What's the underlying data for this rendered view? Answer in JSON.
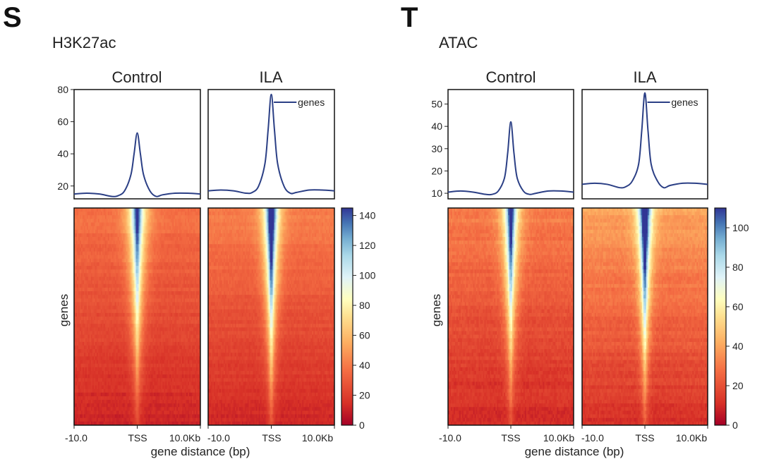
{
  "chart_data": [
    {
      "panel_letter": "S",
      "title": "H3K27ac",
      "type": "line+heatmap",
      "columns": [
        "Control",
        "ILA"
      ],
      "profile": {
        "ylim": [
          12,
          80
        ],
        "yticks": [
          20,
          40,
          60,
          80
        ],
        "legend": "genes",
        "legend_placement": "top-right",
        "line_color": "#2b3f85",
        "x_kb": [
          -10,
          -8,
          -6,
          -4,
          -3,
          -2,
          -1,
          -0.5,
          0,
          0.5,
          1,
          2,
          3,
          4,
          6,
          8,
          10
        ],
        "series": [
          {
            "column": "Control",
            "values": [
              15,
              15.5,
              15,
              13.5,
              14,
              17,
              27,
              40,
              53,
              40,
              27,
              17,
              13.5,
              14.5,
              15.5,
              15.5,
              15
            ]
          },
          {
            "column": "ILA",
            "values": [
              17,
              17.5,
              17,
              15.5,
              16,
              20,
              34,
              55,
              77,
              55,
              34,
              20,
              15.5,
              16,
              17.5,
              17.5,
              17
            ]
          }
        ]
      },
      "heatmap": {
        "ylabel": "genes",
        "colorbar": {
          "range": [
            0,
            145
          ],
          "ticks": [
            0,
            20,
            40,
            60,
            80,
            100,
            120,
            140
          ],
          "colormap": "RdYlBu_r"
        },
        "xticks": [
          "-10.0",
          "TSS",
          "10.0Kb"
        ],
        "xlabel": "gene distance (bp)"
      }
    },
    {
      "panel_letter": "T",
      "title": "ATAC",
      "type": "line+heatmap",
      "columns": [
        "Control",
        "ILA"
      ],
      "profile": {
        "ylim": [
          7.5,
          56.5
        ],
        "yticks": [
          10,
          20,
          30,
          40,
          50
        ],
        "legend": "genes",
        "legend_placement": "top-right",
        "line_color": "#2b3f85",
        "x_kb": [
          -10,
          -8,
          -6,
          -4,
          -3,
          -2,
          -1,
          -0.5,
          0,
          0.5,
          1,
          2,
          3,
          4,
          6,
          8,
          10
        ],
        "series": [
          {
            "column": "Control",
            "values": [
              10.5,
              11,
              10.5,
              9.5,
              9.5,
              11,
              17,
              28,
              42,
              28,
              17,
              11,
              9.5,
              10,
              11,
              11,
              10.5
            ]
          },
          {
            "column": "ILA",
            "values": [
              14,
              14.5,
              14,
              12.5,
              13,
              15.5,
              23,
              38,
              55,
              38,
              23,
              15.5,
              12.5,
              13.5,
              14.5,
              14.5,
              14
            ]
          }
        ]
      },
      "heatmap": {
        "ylabel": "genes",
        "colorbar": {
          "range": [
            0,
            110
          ],
          "ticks": [
            0,
            20,
            40,
            60,
            80,
            100
          ],
          "colormap": "RdYlBu_r"
        },
        "xticks": [
          "-10.0",
          "TSS",
          "10.0Kb"
        ],
        "xlabel": "gene distance (bp)"
      }
    }
  ]
}
